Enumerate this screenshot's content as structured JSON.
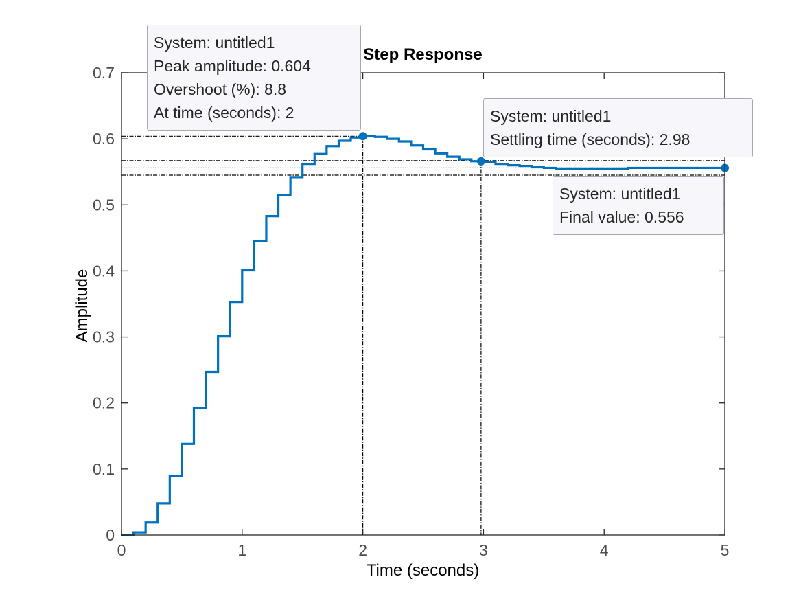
{
  "chart_data": {
    "type": "line",
    "title": "Step Response",
    "xlabel": "Time (seconds)",
    "ylabel": "Amplitude",
    "xlim": [
      0,
      5
    ],
    "ylim": [
      0,
      0.7
    ],
    "xticks": [
      "0",
      "1",
      "2",
      "3",
      "4",
      "5"
    ],
    "yticks": [
      "0",
      "0.1",
      "0.2",
      "0.3",
      "0.4",
      "0.5",
      "0.6",
      "0.7"
    ],
    "grid": false,
    "step": true,
    "line_color": "#0072bd",
    "series": [
      {
        "x": [
          0,
          0.1,
          0.2,
          0.3,
          0.4,
          0.5,
          0.6,
          0.7,
          0.8,
          0.9,
          1.0,
          1.1,
          1.2,
          1.3,
          1.4,
          1.5,
          1.6,
          1.7,
          1.8,
          1.9,
          2.0,
          2.1,
          2.2,
          2.3,
          2.4,
          2.5,
          2.6,
          2.7,
          2.8,
          2.9,
          3.0,
          3.1,
          3.2,
          3.3,
          3.4,
          3.5,
          3.6,
          3.7,
          3.8,
          3.9,
          4.0,
          4.1,
          4.2,
          4.3,
          4.4,
          4.5,
          4.6,
          4.7,
          4.8,
          4.9,
          5.0
        ],
        "values": [
          0,
          0.004,
          0.019,
          0.048,
          0.089,
          0.138,
          0.192,
          0.247,
          0.301,
          0.353,
          0.401,
          0.445,
          0.483,
          0.515,
          0.542,
          0.562,
          0.577,
          0.589,
          0.597,
          0.602,
          0.604,
          0.603,
          0.6,
          0.596,
          0.59,
          0.584,
          0.578,
          0.573,
          0.569,
          0.566,
          0.565,
          0.562,
          0.56,
          0.559,
          0.557,
          0.556,
          0.555,
          0.555,
          0.555,
          0.555,
          0.555,
          0.555,
          0.556,
          0.556,
          0.556,
          0.556,
          0.556,
          0.556,
          0.556,
          0.556,
          0.556
        ]
      }
    ],
    "settling_band": [
      0.545,
      0.567
    ],
    "final_value": 0.556,
    "markers": [
      {
        "x": 2.0,
        "y": 0.604,
        "lines": [
          "System: untitled1",
          "Peak amplitude: 0.604",
          "Overshoot (%): 8.8",
          "At time (seconds): 2"
        ]
      },
      {
        "x": 2.98,
        "y": 0.566,
        "lines": [
          "System: untitled1",
          "Settling time (seconds): 2.98"
        ]
      },
      {
        "x": 5.0,
        "y": 0.556,
        "lines": [
          "System: untitled1",
          "Final value: 0.556"
        ]
      }
    ]
  }
}
